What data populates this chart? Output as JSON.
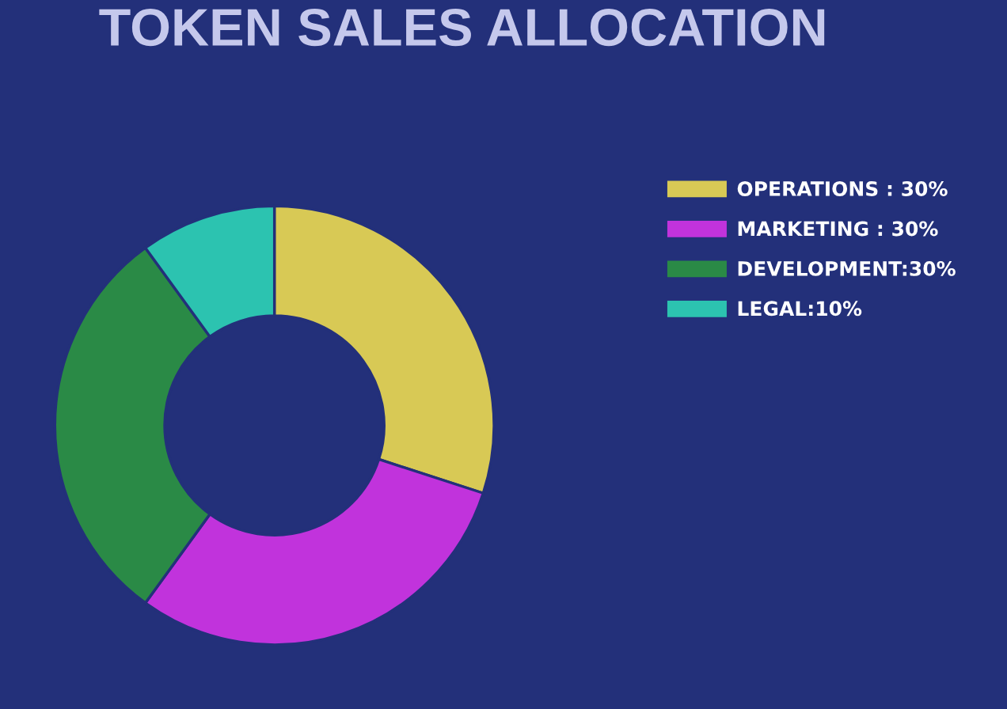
{
  "chart_data": {
    "type": "donut",
    "title": "TOKEN SALES ALLOCATION",
    "categories": [
      "OPERATIONS : 30%",
      "MARKETING : 30%",
      "DEVELOPMENT:30%",
      "LEGAL:10%"
    ],
    "values": [
      30,
      30,
      30,
      10
    ],
    "colors": [
      "#d8c955",
      "#c133dc",
      "#2a8a46",
      "#2cc3b0"
    ],
    "legend": "right"
  }
}
